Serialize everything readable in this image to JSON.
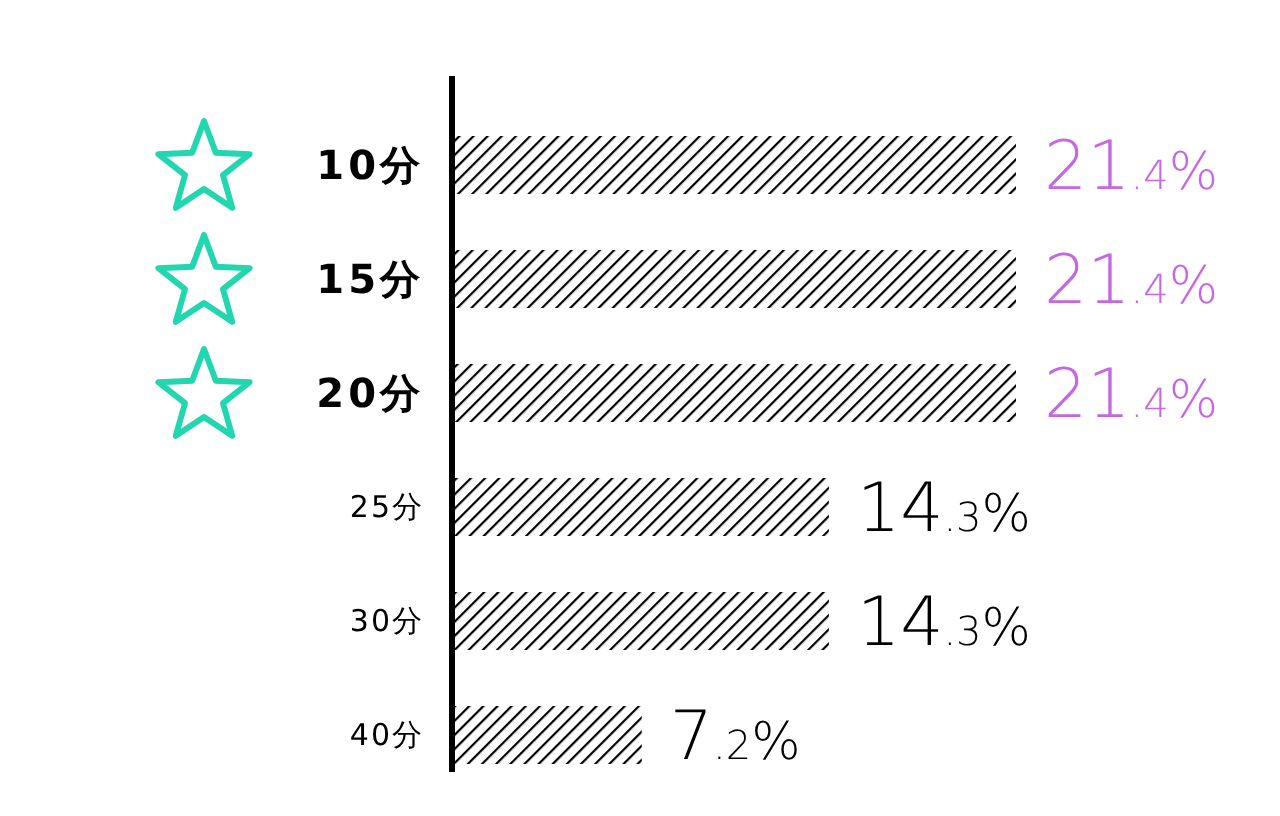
{
  "chart_data": {
    "type": "bar",
    "orientation": "horizontal",
    "categories": [
      "10分",
      "15分",
      "20分",
      "25分",
      "30分",
      "40分"
    ],
    "values": [
      21.4,
      21.4,
      21.4,
      14.3,
      14.3,
      7.2
    ],
    "color": "#000000",
    "value_labels": [
      "21.4%",
      "21.4%",
      "21.4%",
      "14.3%",
      "14.3%",
      "7.2%"
    ]
  }
}
